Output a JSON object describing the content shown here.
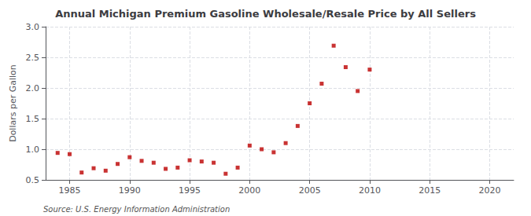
{
  "chart_data": {
    "type": "scatter",
    "title": "Annual Michigan Premium Gasoline Wholesale/Resale Price by All Sellers",
    "ylabel": "Dollars per Gallon",
    "annotations": [
      "Source: U.S. Energy Information Administration"
    ],
    "x": [
      1984,
      1985,
      1986,
      1987,
      1988,
      1989,
      1990,
      1991,
      1992,
      1993,
      1994,
      1995,
      1996,
      1997,
      1998,
      1999,
      2000,
      2001,
      2002,
      2003,
      2004,
      2005,
      2006,
      2007,
      2008,
      2009,
      2010
    ],
    "values": [
      0.94,
      0.92,
      0.62,
      0.69,
      0.65,
      0.76,
      0.87,
      0.81,
      0.78,
      0.68,
      0.7,
      0.82,
      0.8,
      0.78,
      0.6,
      0.7,
      1.06,
      1.0,
      0.95,
      1.1,
      1.38,
      1.75,
      2.07,
      2.69,
      2.34,
      1.95,
      2.3
    ],
    "color": "#bb0000",
    "marker": "square",
    "xlim": [
      1983,
      2022
    ],
    "xticks": [
      1985,
      1990,
      1995,
      2000,
      2005,
      2010,
      2015,
      2020
    ],
    "ylim": [
      0.5,
      3.0
    ],
    "yticks": [
      0.5,
      {
        "value": 1.0,
        "label": "1.0"
      },
      1.5,
      {
        "value": 2.0,
        "label": "2.0"
      },
      2.5,
      {
        "value": 3.0,
        "label": "3.0"
      }
    ],
    "grid": true
  }
}
